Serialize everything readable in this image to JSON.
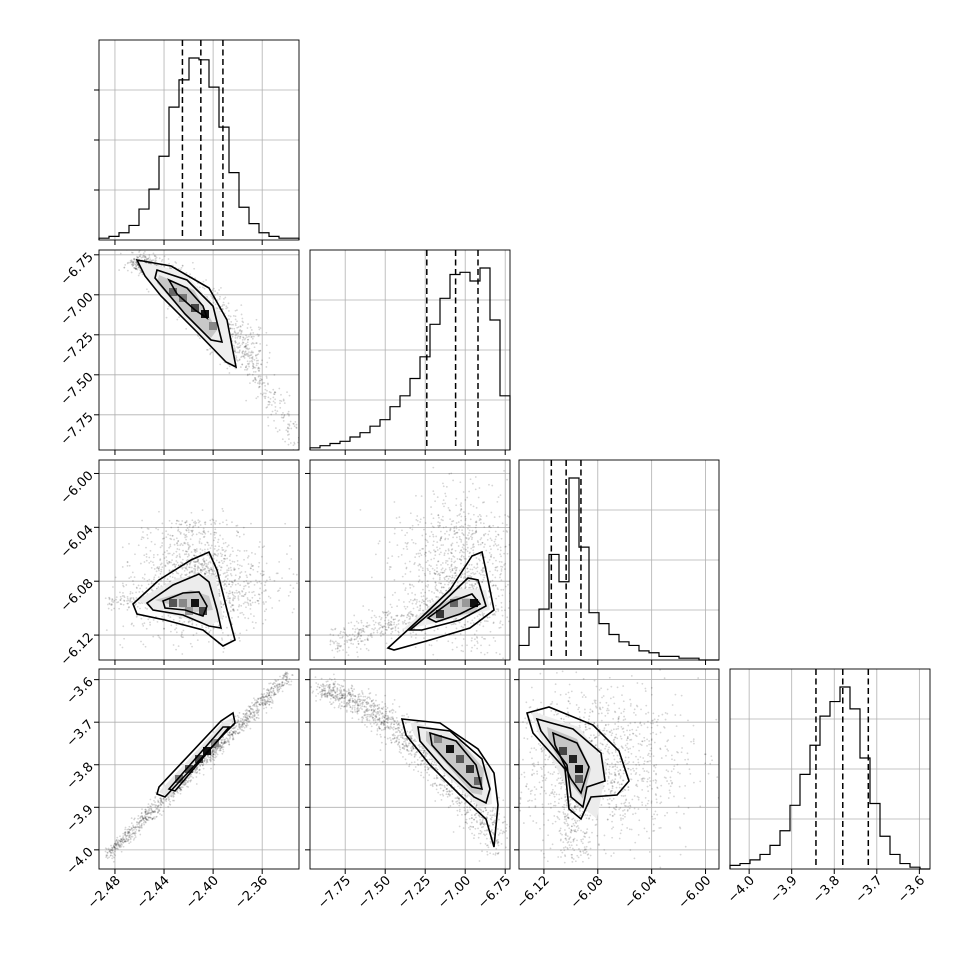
{
  "chart_data": {
    "type": "corner",
    "grid": true,
    "n_params": 4,
    "parameters": [
      {
        "name": "",
        "ticks": [
          -2.48,
          -2.44,
          -2.4,
          -2.36
        ],
        "tick_labels": [
          "−2.48",
          "−2.44",
          "−2.40",
          "−2.36"
        ],
        "range": [
          -2.493,
          -2.33
        ],
        "quantiles": [
          -2.425,
          -2.41,
          -2.392
        ]
      },
      {
        "name": "",
        "ticks": [
          -7.75,
          -7.5,
          -7.25,
          -7.0,
          -6.75
        ],
        "tick_labels": [
          "−7.75",
          "−7.50",
          "−7.25",
          "−7.00",
          "−6.75"
        ],
        "range": [
          -7.97,
          -6.72
        ],
        "quantiles": [
          -7.24,
          -7.06,
          -6.92
        ]
      },
      {
        "name": "",
        "ticks": [
          -6.12,
          -6.08,
          -6.04,
          -6.0
        ],
        "tick_labels": [
          "−6.12",
          "−6.08",
          "−6.04",
          "−6.00"
        ],
        "range": [
          -6.1385,
          -5.99
        ],
        "quantiles": [
          -6.1145,
          -6.1035,
          -6.0925
        ]
      },
      {
        "name": "",
        "ticks": [
          -4.0,
          -3.9,
          -3.8,
          -3.7,
          -3.6
        ],
        "tick_labels": [
          "−4.0",
          "−3.9",
          "−3.8",
          "−3.7",
          "−3.6"
        ],
        "range": [
          -4.045,
          -3.575
        ],
        "quantiles": [
          -3.843,
          -3.78,
          -3.72
        ]
      }
    ],
    "histograms": [
      {
        "param": 0,
        "edges": [
          -2.493,
          -2.33
        ],
        "counts": [
          1,
          2,
          4,
          8,
          17,
          28,
          46,
          73,
          88,
          100,
          99,
          84,
          62,
          37,
          18,
          9,
          4,
          2,
          1,
          1
        ]
      },
      {
        "param": 1,
        "edges": [
          -7.97,
          -6.72
        ],
        "counts": [
          1,
          2,
          3,
          4,
          6,
          8,
          11,
          14,
          20,
          25,
          33,
          43,
          58,
          70,
          81,
          82,
          78,
          84,
          60,
          25
        ]
      },
      {
        "param": 2,
        "edges": [
          -6.1385,
          -5.99
        ],
        "counts": [
          8,
          18,
          28,
          58,
          43,
          100,
          62,
          26,
          20,
          14,
          10,
          8,
          5,
          4,
          2,
          2,
          1,
          1,
          0,
          0
        ]
      },
      {
        "param": 3,
        "edges": [
          -4.045,
          -3.575
        ],
        "counts": [
          2,
          3,
          5,
          8,
          13,
          21,
          35,
          52,
          68,
          84,
          92,
          100,
          88,
          61,
          36,
          18,
          8,
          3,
          1,
          0
        ]
      }
    ],
    "pairs": [
      {
        "x": 0,
        "y": 1,
        "relation": "curved-negative",
        "center": [
          -2.408,
          -7.05
        ]
      },
      {
        "x": 0,
        "y": 2,
        "relation": "boomerang",
        "center": [
          -2.412,
          -6.103
        ]
      },
      {
        "x": 1,
        "y": 2,
        "relation": "positive",
        "center": [
          -7.02,
          -6.102
        ]
      },
      {
        "x": 0,
        "y": 3,
        "relation": "linear-positive",
        "center": [
          -2.41,
          -3.79
        ]
      },
      {
        "x": 1,
        "y": 3,
        "relation": "curved-negative",
        "center": [
          -7.08,
          -3.78
        ]
      },
      {
        "x": 2,
        "y": 3,
        "relation": "boomerang",
        "center": [
          -6.108,
          -3.785
        ]
      }
    ]
  }
}
